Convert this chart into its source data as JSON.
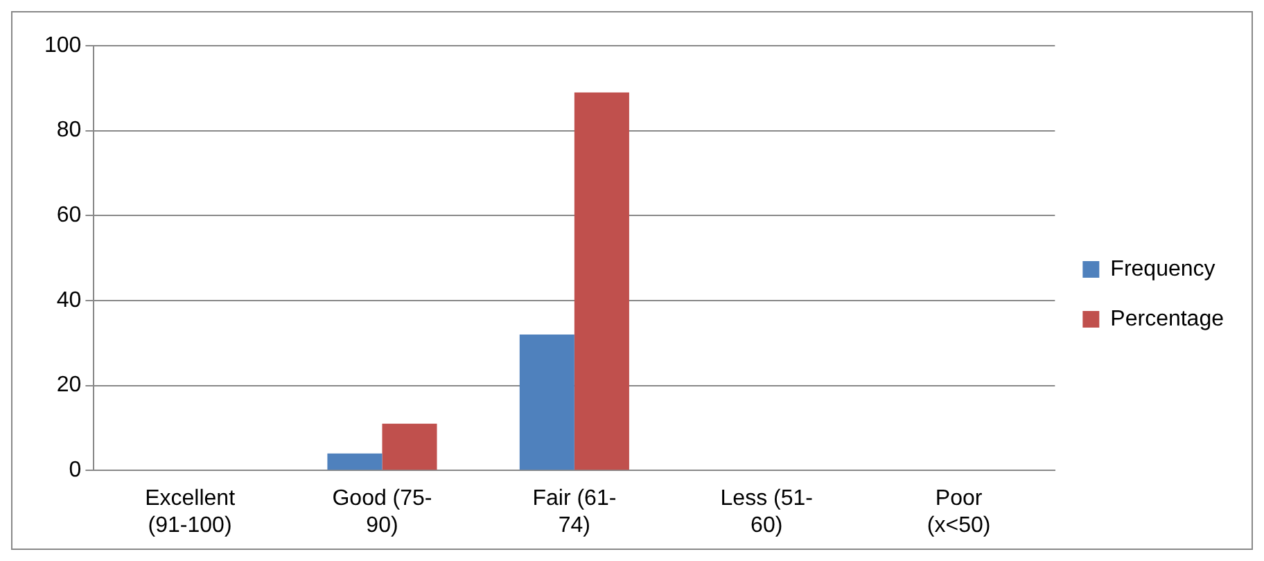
{
  "chart_data": {
    "type": "bar",
    "categories": [
      "Excellent (91-100)",
      "Good (75-90)",
      "Fair (61-74)",
      "Less (51-60)",
      "Poor (x<50)"
    ],
    "series": [
      {
        "name": "Frequency",
        "color": "#4f81bd",
        "values": [
          0,
          4,
          32,
          0,
          0
        ]
      },
      {
        "name": "Percentage",
        "color": "#c0504d",
        "values": [
          0,
          11,
          89,
          0,
          0
        ]
      }
    ],
    "ylim": [
      0,
      100
    ],
    "yticks": [
      0,
      20,
      40,
      60,
      80,
      100
    ],
    "grid": "y",
    "legend": "right"
  }
}
